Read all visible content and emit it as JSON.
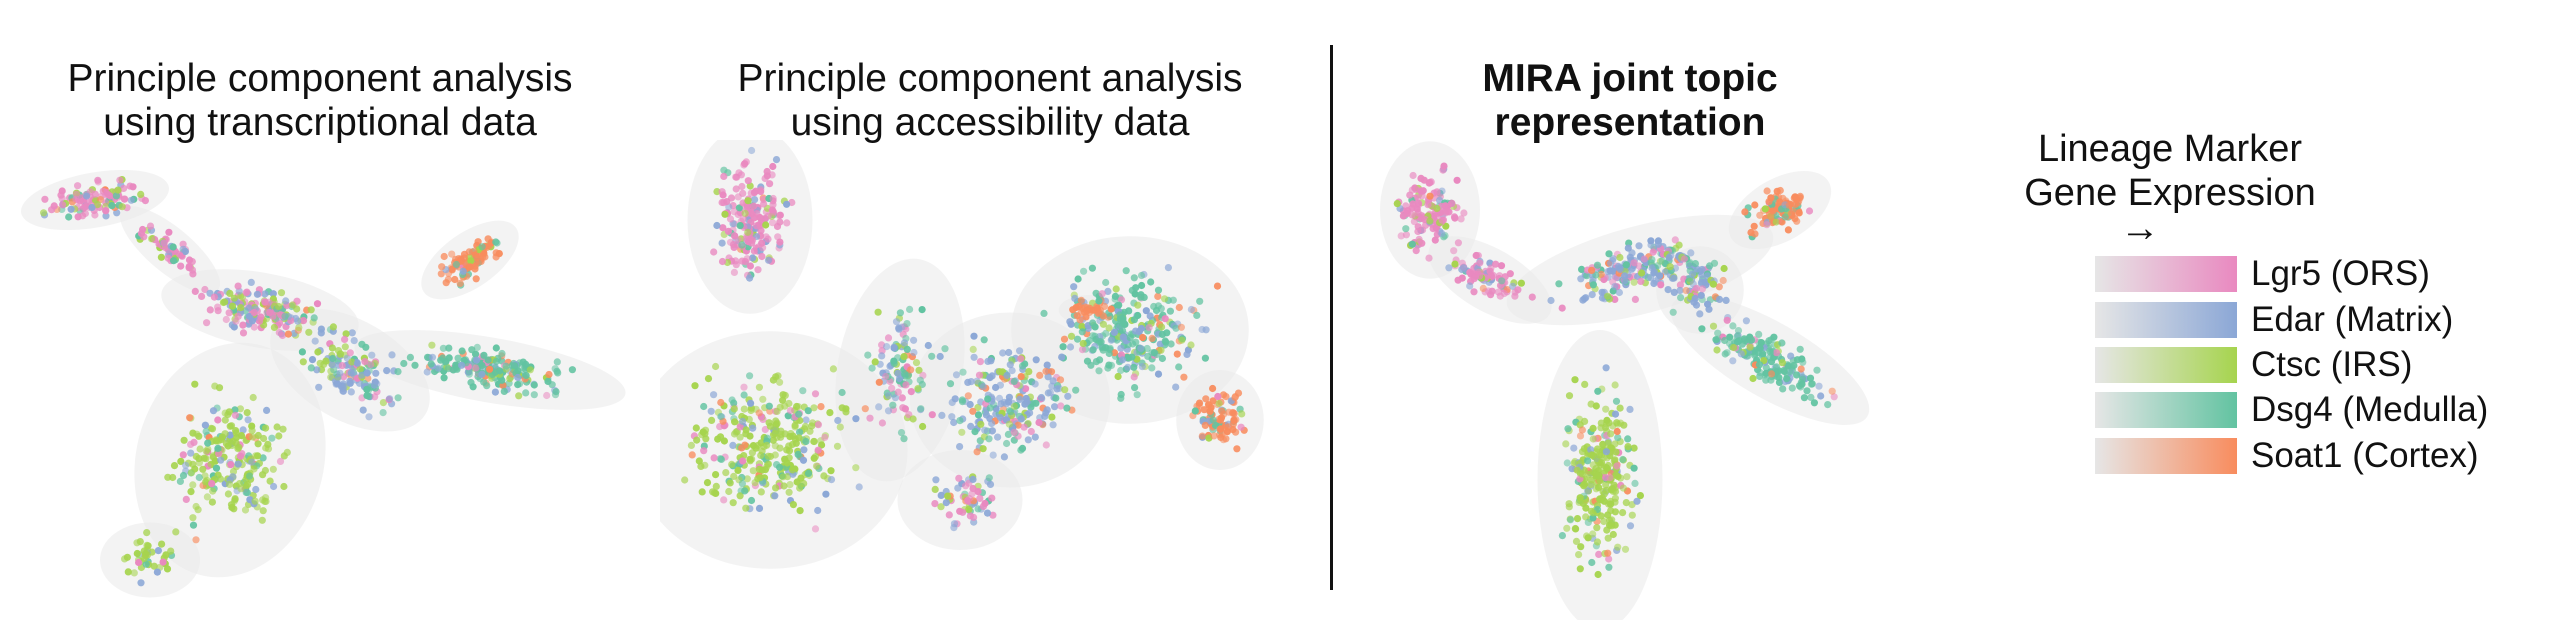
{
  "panels": [
    {
      "id": "pca-rna",
      "title_line1": "Principle component analysis",
      "title_line2": "using transcriptional data"
    },
    {
      "id": "pca-atac",
      "title_line1": "Principle component analysis",
      "title_line2": "using accessibility data"
    },
    {
      "id": "mira",
      "title_line1": "MIRA joint topic",
      "title_line2": "representation"
    }
  ],
  "legend": {
    "title_line1": "Lineage Marker",
    "title_line2": "Gene Expression",
    "arrow": "→",
    "items": [
      {
        "label": "Lgr5 (ORS)",
        "color": "#e989c0"
      },
      {
        "label": "Edar (Matrix)",
        "color": "#8ba7d6"
      },
      {
        "label": "Ctsc (IRS)",
        "color": "#a6d44e"
      },
      {
        "label": "Dsg4 (Medulla)",
        "color": "#62c3a1"
      },
      {
        "label": "Soat1 (Cortex)",
        "color": "#f88c5e"
      }
    ]
  }
}
